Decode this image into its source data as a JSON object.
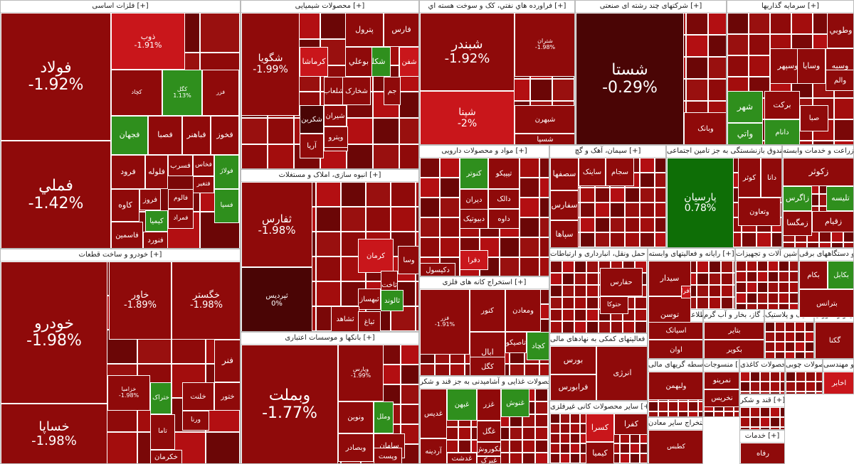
{
  "sectors": [
    {
      "id": "metals",
      "title": "فلزات اساسی [+]",
      "tiles": [
        {
          "n": "فولاد",
          "p": "-1.92%",
          "c": "dark"
        },
        {
          "n": "فملي",
          "p": "-1.42%",
          "c": "dark"
        },
        {
          "n": "ذوب",
          "p": "-1.91%",
          "c": "red"
        },
        {
          "n": "کچاد",
          "p": "",
          "c": "dark"
        },
        {
          "n": "کگل",
          "p": "1.13%",
          "c": "green"
        },
        {
          "n": "فجهان",
          "p": "",
          "c": "green"
        },
        {
          "n": "فصبا",
          "p": "",
          "c": "dark"
        },
        {
          "n": "فباهنر",
          "p": "",
          "c": "dark"
        },
        {
          "n": "فخوز",
          "p": "",
          "c": "dark"
        },
        {
          "n": "فرود",
          "p": "",
          "c": "dark"
        },
        {
          "n": "فلوله",
          "p": "",
          "c": "dark"
        },
        {
          "n": "فسرب",
          "p": "",
          "c": "dark"
        },
        {
          "n": "فخاس",
          "p": "",
          "c": "dark"
        },
        {
          "n": "فولاژ",
          "p": "",
          "c": "green"
        },
        {
          "n": "فروز",
          "p": "",
          "c": "dark"
        },
        {
          "n": "فسپا",
          "p": "",
          "c": "green"
        },
        {
          "n": "کاوه",
          "p": "",
          "c": "dark"
        },
        {
          "n": "فالوم",
          "p": "",
          "c": "dark"
        },
        {
          "n": "کیمیا",
          "p": "",
          "c": "green"
        },
        {
          "n": "فاسمین",
          "p": "",
          "c": "dark"
        },
        {
          "n": "فنورد",
          "p": "",
          "c": "dark"
        },
        {
          "n": "فتغیر",
          "p": "",
          "c": "dark"
        },
        {
          "n": "فمراد",
          "p": "",
          "c": "dark"
        },
        {
          "n": "فزر",
          "p": "",
          "c": "dark"
        }
      ]
    },
    {
      "id": "chem",
      "title": "محصولات شیمیایی [+]",
      "tiles": [
        {
          "n": "شگویا",
          "p": "-1.99%",
          "c": "dark"
        },
        {
          "n": "پترول",
          "p": "",
          "c": "dark"
        },
        {
          "n": "فارس",
          "p": "",
          "c": "dark"
        },
        {
          "n": "شکلر",
          "p": "",
          "c": "green"
        },
        {
          "n": "بوعلي",
          "p": "",
          "c": "dark"
        },
        {
          "n": "کرماشا",
          "p": "",
          "c": "red"
        },
        {
          "n": "شفن",
          "p": "",
          "c": "red"
        },
        {
          "n": "شلعاب",
          "p": "",
          "c": "dark"
        },
        {
          "n": "شخارک",
          "p": "",
          "c": "dark"
        },
        {
          "n": "جم",
          "p": "",
          "c": "dark"
        },
        {
          "n": "شیران",
          "p": "",
          "c": "dark"
        },
        {
          "n": "شکربن",
          "p": "",
          "c": "vdark"
        },
        {
          "n": "شیراز",
          "p": "",
          "c": "dark"
        },
        {
          "n": "ویترو",
          "p": "",
          "c": "dark"
        },
        {
          "n": "آریا",
          "p": "",
          "c": "dark"
        }
      ]
    },
    {
      "id": "refinery",
      "title": "فراورده هاي نفتي، كک و سوخت هسته اي [+]",
      "tiles": [
        {
          "n": "شبندر",
          "p": "-1.92%",
          "c": "dark"
        },
        {
          "n": "شپنا",
          "p": "-2%",
          "c": "red"
        },
        {
          "n": "شتران",
          "p": "-1.98%",
          "c": "dark"
        },
        {
          "n": "شبهرن",
          "p": "",
          "c": "dark"
        },
        {
          "n": "شسپا",
          "p": "",
          "c": "dark"
        }
      ]
    },
    {
      "id": "diversified",
      "title": "شرکتهای چند رشته ای صنعتی [+]",
      "tiles": [
        {
          "n": "شستا",
          "p": "-0.29%",
          "c": "vdark"
        },
        {
          "n": "وبانک",
          "p": "",
          "c": "dark"
        }
      ]
    },
    {
      "id": "investment",
      "title": "سرمایه گذاریها [+]",
      "tiles": [
        {
          "n": "وطوبي",
          "p": "",
          "c": "dark"
        },
        {
          "n": "وسپهر",
          "p": "",
          "c": "dark"
        },
        {
          "n": "وسایا",
          "p": "",
          "c": "dark"
        },
        {
          "n": "وسبه",
          "p": "",
          "c": "dark"
        },
        {
          "n": "والم",
          "p": "",
          "c": "dark"
        },
        {
          "n": "شهر",
          "p": "",
          "c": "green"
        },
        {
          "n": "برکت",
          "p": "",
          "c": "dark"
        },
        {
          "n": "دانام",
          "p": "",
          "c": "green"
        },
        {
          "n": "صبا",
          "p": "",
          "c": "dark"
        },
        {
          "n": "واتي",
          "p": "",
          "c": "green"
        }
      ]
    },
    {
      "id": "auto",
      "title": "خودرو و ساخت قطعات [+]",
      "tiles": [
        {
          "n": "خودرو",
          "p": "-1.98%",
          "c": "dark"
        },
        {
          "n": "خساپا",
          "p": "-1.98%",
          "c": "dark"
        },
        {
          "n": "خاور",
          "p": "-1.89%",
          "c": "dark"
        },
        {
          "n": "خگستر",
          "p": "-1.98%",
          "c": "dark"
        },
        {
          "n": "خزامیا",
          "p": "-1.98%",
          "c": "dark"
        },
        {
          "n": "ختراک",
          "p": "",
          "c": "green"
        },
        {
          "n": "خلنت",
          "p": "",
          "c": "dark"
        },
        {
          "n": "ختور",
          "p": "",
          "c": "dark"
        },
        {
          "n": "ورنا",
          "p": "",
          "c": "dark"
        },
        {
          "n": "تاما",
          "p": "",
          "c": "dark"
        },
        {
          "n": "خکرمان",
          "p": "",
          "c": "dark"
        },
        {
          "n": "فنر",
          "p": "",
          "c": "dark"
        }
      ]
    },
    {
      "id": "realestate",
      "title": "انبوه سازی، املاک و مستغلات [+]",
      "tiles": [
        {
          "n": "ثفارس",
          "p": "-1.98%",
          "c": "dark"
        },
        {
          "n": "ثپردیس",
          "p": "0%",
          "c": "vdark"
        },
        {
          "n": "کرمان",
          "p": "",
          "c": "red"
        },
        {
          "n": "ثاخت",
          "p": "",
          "c": "dark"
        },
        {
          "n": "ثالوند",
          "p": "",
          "c": "green"
        },
        {
          "n": "ثبهساز",
          "p": "",
          "c": "dark"
        },
        {
          "n": "ثشاهد",
          "p": "",
          "c": "dark"
        },
        {
          "n": "ثباغ",
          "p": "",
          "c": "dark"
        },
        {
          "n": "وسا",
          "p": "",
          "c": "dark"
        }
      ]
    },
    {
      "id": "banks",
      "title": "بانکها و موسسات اعتباری [+]",
      "tiles": [
        {
          "n": "وبملت",
          "p": "-1.77%",
          "c": "dark"
        },
        {
          "n": "وپارس",
          "p": "-1.99%",
          "c": "dark"
        },
        {
          "n": "ونوین",
          "p": "",
          "c": "dark"
        },
        {
          "n": "وملل",
          "p": "",
          "c": "green"
        },
        {
          "n": "سامان",
          "p": "",
          "c": "dark"
        },
        {
          "n": "وبصادر",
          "p": "",
          "c": "dark"
        },
        {
          "n": "وپست",
          "p": "",
          "c": "dark"
        }
      ]
    },
    {
      "id": "pharma",
      "title": "مواد و محصولات دارویی [+]",
      "tiles": [
        {
          "n": "تیپیکو",
          "p": "",
          "c": "dark"
        },
        {
          "n": "کنوتر",
          "p": "",
          "c": "green"
        },
        {
          "n": "دالک",
          "p": "",
          "c": "dark"
        },
        {
          "n": "دیران",
          "p": "",
          "c": "dark"
        },
        {
          "n": "دبیوتیک",
          "p": "",
          "c": "dark"
        },
        {
          "n": "داوه",
          "p": "",
          "c": "dark"
        },
        {
          "n": "دکیسول",
          "p": "",
          "c": "dark"
        },
        {
          "n": "دفرا",
          "p": "",
          "c": "red"
        }
      ]
    },
    {
      "id": "cement",
      "title": "سیمان، آهک و گچ [+]",
      "tiles": [
        {
          "n": "سصفها",
          "p": "",
          "c": "dark"
        },
        {
          "n": "ساینک",
          "p": "",
          "c": "dark"
        },
        {
          "n": "سجام",
          "p": "",
          "c": "dark"
        },
        {
          "n": "سفارس",
          "p": "",
          "c": "dark"
        },
        {
          "n": "سپاها",
          "p": "",
          "c": "dark"
        }
      ]
    },
    {
      "id": "insurance",
      "title": "بیمه وصندوق بازنشستگی به جز تامین اجتماعی [+]",
      "tiles": [
        {
          "n": "پارسیان",
          "p": "0.78%",
          "c": "vgreen"
        },
        {
          "n": "کوثر",
          "p": "",
          "c": "dark"
        },
        {
          "n": "دانا",
          "p": "",
          "c": "dark"
        },
        {
          "n": "وتعاون",
          "p": "",
          "c": "dark"
        }
      ]
    },
    {
      "id": "services",
      "title": "زراعت و خدمات وابسته [+]",
      "tiles": [
        {
          "n": "زکوثر",
          "p": "",
          "c": "dark"
        },
        {
          "n": "تلیسه",
          "p": "",
          "c": "green"
        },
        {
          "n": "زاگرس",
          "p": "",
          "c": "green"
        },
        {
          "n": "زقیام",
          "p": "",
          "c": "dark"
        },
        {
          "n": "زمگسا",
          "p": "",
          "c": "dark"
        }
      ]
    },
    {
      "id": "mining",
      "title": "استخراج کانه های فلزی [+]",
      "tiles": [
        {
          "n": "فزر",
          "p": "-1.91%",
          "c": "dark"
        },
        {
          "n": "کنور",
          "p": "",
          "c": "dark"
        },
        {
          "n": "ومعادن",
          "p": "",
          "c": "dark"
        },
        {
          "n": "ابال",
          "p": "",
          "c": "dark"
        },
        {
          "n": "کگل",
          "p": "",
          "c": "dark"
        },
        {
          "n": "کچاد",
          "p": "",
          "c": "green"
        },
        {
          "n": "تاصیکو",
          "p": "",
          "c": "dark"
        }
      ]
    },
    {
      "id": "food",
      "title": "محصولات غذایی و آشامیدنی به جز قند و شکر [+]",
      "tiles": [
        {
          "n": "غدیس",
          "p": "",
          "c": "dark"
        },
        {
          "n": "غبهن",
          "p": "",
          "c": "green"
        },
        {
          "n": "غزر",
          "p": "",
          "c": "dark"
        },
        {
          "n": "غنوش",
          "p": "",
          "c": "green"
        },
        {
          "n": "غگل",
          "p": "",
          "c": "dark"
        },
        {
          "n": "غکوروش",
          "p": "",
          "c": "dark"
        },
        {
          "n": "غبرک",
          "p": "",
          "c": "dark"
        },
        {
          "n": "آردینه",
          "p": "",
          "c": "dark"
        },
        {
          "n": "غدشت",
          "p": "",
          "c": "dark"
        }
      ]
    },
    {
      "id": "transport",
      "title": "حمل ونقل، انبارداری و ارتباطات [+]",
      "tiles": [
        {
          "n": "حفارس",
          "p": "",
          "c": "dark"
        },
        {
          "n": "حتوکا",
          "p": "",
          "c": "dark"
        }
      ]
    },
    {
      "id": "support",
      "title": "فعالیتهای کمکی به نهادهای مالی [+]",
      "tiles": [
        {
          "n": "بورس",
          "p": "",
          "c": "dark"
        },
        {
          "n": "فرابورس",
          "p": "",
          "c": "dark"
        },
        {
          "n": "انرژی",
          "p": "",
          "c": "dark"
        }
      ]
    },
    {
      "id": "nonmetal",
      "title": "سایر محصولات کانی غیرفلزی [+]",
      "tiles": [
        {
          "n": "کسرا",
          "p": "",
          "c": "red"
        },
        {
          "n": "کیمیا",
          "p": "",
          "c": "dark"
        },
        {
          "n": "کفرا",
          "p": "",
          "c": "dark"
        }
      ]
    },
    {
      "id": "computer",
      "title": "رایانه و فعالیتهای وابسته [+]",
      "tiles": [
        {
          "n": "سیدار",
          "p": "",
          "c": "dark"
        },
        {
          "n": "توسن",
          "p": "",
          "c": "dark"
        },
        {
          "n": "افرا",
          "p": "",
          "c": "red"
        }
      ]
    },
    {
      "id": "machinery",
      "title": "ماشین آلات و تجهیزات [+]",
      "tiles": []
    },
    {
      "id": "electric",
      "title": "ماشین آلات و دستگاههای برقی [+]",
      "tiles": [
        {
          "n": "بکام",
          "p": "",
          "c": "dark"
        },
        {
          "n": "بکابل",
          "p": "",
          "c": "green"
        },
        {
          "n": "بترانس",
          "p": "",
          "c": "dark"
        }
      ]
    },
    {
      "id": "info",
      "title": "اطلاعات و ارتباطات [+]",
      "tiles": [
        {
          "n": "اسیاتک",
          "p": "",
          "c": "dark"
        },
        {
          "n": "اوان",
          "p": "",
          "c": "dark"
        }
      ]
    },
    {
      "id": "power",
      "title": "عرضه برق، گاز، بخار و آب گرم [+]",
      "tiles": [
        {
          "n": "بتایر",
          "p": "",
          "c": "dark"
        },
        {
          "n": "بکویر",
          "p": "",
          "c": "dark"
        }
      ]
    },
    {
      "id": "plastic",
      "title": "لاستیک و پلاستیک [+]",
      "tiles": []
    },
    {
      "id": "hotel",
      "title": "هتل و رستوران [+]",
      "tiles": [
        {
          "n": "گکنا",
          "p": "",
          "c": "dark"
        }
      ]
    },
    {
      "id": "textile",
      "title": "منسوجات [+]",
      "tiles": [
        {
          "n": "نمرینو",
          "p": "",
          "c": "dark"
        },
        {
          "n": "نخریس",
          "p": "",
          "c": "dark"
        }
      ]
    },
    {
      "id": "othercontr",
      "title": "سایر واسطه گریهای مالی [+]",
      "tiles": [
        {
          "n": "ولبهمن",
          "p": "",
          "c": "dark"
        }
      ]
    },
    {
      "id": "other_ex",
      "title": "استخراج سایر معادن [+]",
      "tiles": [
        {
          "n": "کطبس",
          "p": "",
          "c": "dark"
        }
      ]
    },
    {
      "id": "paper",
      "title": "محصولات کاغذی [+]",
      "tiles": []
    },
    {
      "id": "wood",
      "title": "محصولات چوبی [+]",
      "tiles": []
    },
    {
      "id": "trade",
      "title": "خدمات فنی و مهندسی [+]",
      "tiles": [
        {
          "n": "اخابر",
          "p": "",
          "c": "red"
        }
      ]
    },
    {
      "id": "sugar",
      "title": "قند و شکر [+]",
      "tiles": []
    },
    {
      "id": "rest",
      "title": "خدمات [+]",
      "tiles": [
        {
          "n": "رفاه",
          "p": "",
          "c": "dark"
        }
      ]
    }
  ]
}
